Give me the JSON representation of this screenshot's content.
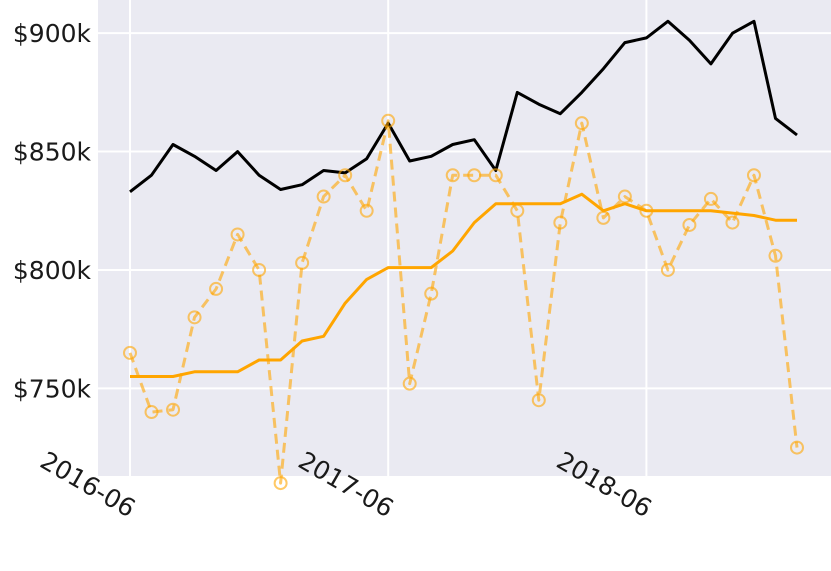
{
  "chart_data": {
    "type": "line",
    "title": "",
    "xlabel": "",
    "ylabel": "",
    "x": [
      "2016-06",
      "2016-07",
      "2016-08",
      "2016-09",
      "2016-10",
      "2016-11",
      "2016-12",
      "2017-01",
      "2017-02",
      "2017-03",
      "2017-04",
      "2017-05",
      "2017-06",
      "2017-07",
      "2017-08",
      "2017-09",
      "2017-10",
      "2017-11",
      "2017-12",
      "2018-01",
      "2018-02",
      "2018-03",
      "2018-04",
      "2018-05",
      "2018-06",
      "2018-07",
      "2018-08",
      "2018-09",
      "2018-10",
      "2018-11",
      "2018-12",
      "2019-01"
    ],
    "x_ticks": [
      {
        "date": "2016-06",
        "label": "2016-06"
      },
      {
        "date": "2017-06",
        "label": "2017-06"
      },
      {
        "date": "2018-06",
        "label": "2018-06"
      }
    ],
    "y_ticks": [
      {
        "value": 750000,
        "label": "$750k"
      },
      {
        "value": 800000,
        "label": "$800k"
      },
      {
        "value": 850000,
        "label": "$850k"
      },
      {
        "value": 900000,
        "label": "$900k"
      }
    ],
    "ylim": [
      713000,
      914000
    ],
    "grid": true,
    "series": [
      {
        "color": "#000000",
        "style": "solid",
        "markers": false,
        "values": [
          833000,
          840000,
          853000,
          848000,
          842000,
          850000,
          840000,
          834000,
          836000,
          842000,
          841000,
          847000,
          862000,
          846000,
          848000,
          853000,
          855000,
          842000,
          875000,
          870000,
          866000,
          875000,
          885000,
          896000,
          898000,
          905000,
          897000,
          887000,
          900000,
          905000,
          864000,
          857000
        ]
      },
      {
        "color": "#ffa500",
        "style": "solid",
        "markers": false,
        "values": [
          755000,
          755000,
          755000,
          757000,
          757000,
          757000,
          762000,
          762000,
          770000,
          772000,
          786000,
          796000,
          801000,
          801000,
          801000,
          808000,
          820000,
          828000,
          828000,
          828000,
          828000,
          832000,
          825000,
          828000,
          825000,
          825000,
          825000,
          825000,
          824000,
          823000,
          821000,
          821000
        ]
      },
      {
        "color": "#ffa500",
        "style": "dashed",
        "markers": true,
        "opacity": 0.6,
        "values": [
          765000,
          740000,
          741000,
          780000,
          792000,
          815000,
          800000,
          710000,
          803000,
          831000,
          840000,
          825000,
          863000,
          752000,
          790000,
          840000,
          840000,
          840000,
          825000,
          745000,
          820000,
          862000,
          822000,
          831000,
          825000,
          800000,
          819000,
          830000,
          820000,
          840000,
          806000,
          725000
        ]
      }
    ]
  }
}
